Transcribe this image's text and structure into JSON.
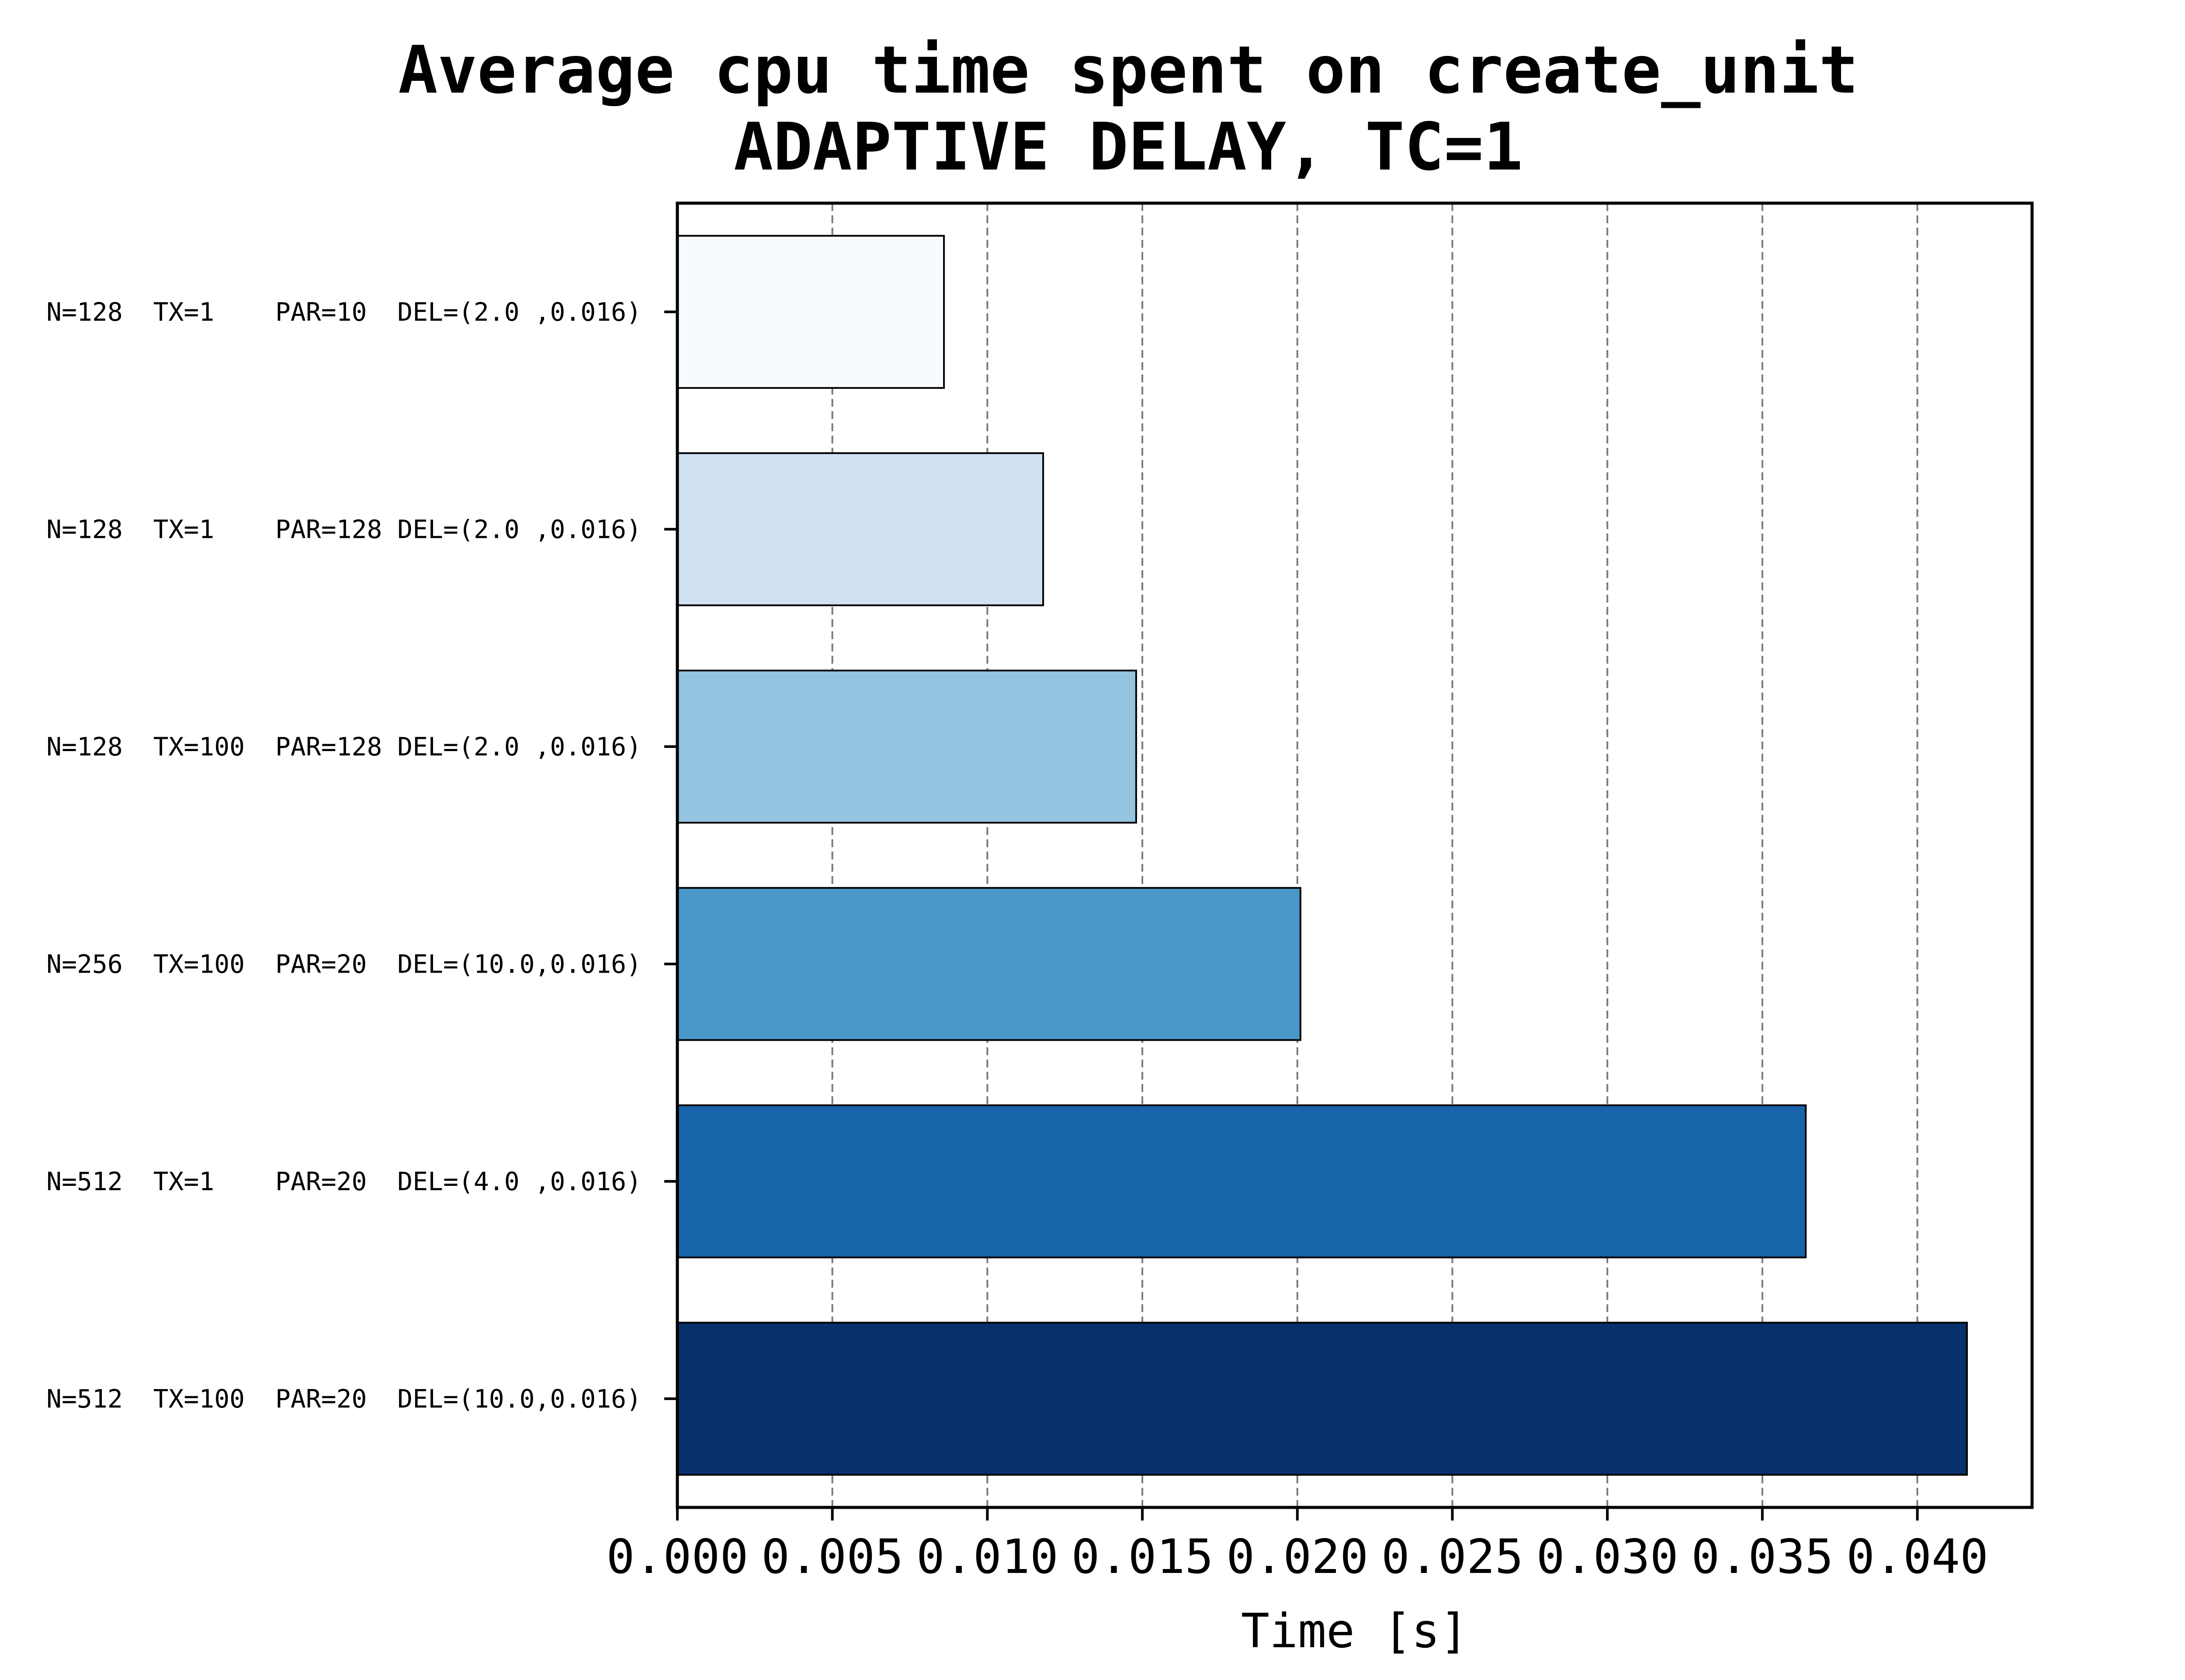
{
  "chart_data": {
    "type": "bar",
    "orientation": "horizontal",
    "title_lines": [
      "Average cpu time spent on create_unit",
      "ADAPTIVE DELAY,   TC=1"
    ],
    "xlabel": "Time [s]",
    "ylabel": "",
    "xlim": [
      0,
      0.0437
    ],
    "xticks": [
      0.0,
      0.005,
      0.01,
      0.015,
      0.02,
      0.025,
      0.03,
      0.035,
      0.04
    ],
    "xtick_labels": [
      "0.000",
      "0.005",
      "0.010",
      "0.015",
      "0.020",
      "0.025",
      "0.030",
      "0.035",
      "0.040"
    ],
    "grid": "x-major-dashed",
    "categories": [
      "N=128  TX=1    PAR=10  DEL=(2.0 ,0.016)",
      "N=128  TX=1    PAR=128 DEL=(2.0 ,0.016)",
      "N=128  TX=100  PAR=128 DEL=(2.0 ,0.016)",
      "N=256  TX=100  PAR=20  DEL=(10.0,0.016)",
      "N=512  TX=1    PAR=20  DEL=(4.0 ,0.016)",
      "N=512  TX=100  PAR=20  DEL=(10.0,0.016)"
    ],
    "values": [
      0.0086,
      0.0118,
      0.0148,
      0.0201,
      0.0364,
      0.0416
    ],
    "colors": [
      "#f7fbff",
      "#d0e1f2",
      "#94c4df",
      "#4a98c9",
      "#1764ab",
      "#08306b"
    ]
  }
}
